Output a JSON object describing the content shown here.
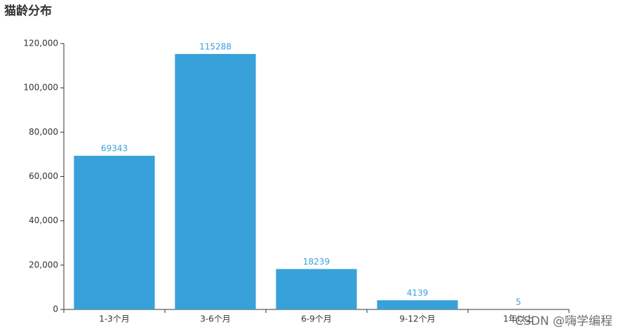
{
  "chart_data": {
    "type": "bar",
    "title": "猫龄分布",
    "categories": [
      "1-3个月",
      "3-6个月",
      "6-9个月",
      "9-12个月",
      "1年以上"
    ],
    "values": [
      69343,
      115288,
      18239,
      4139,
      5
    ],
    "color": "#38a1d9",
    "ylim": [
      0,
      120000
    ],
    "yticks": [
      0,
      {
        "value": 20000,
        "label": "20,000"
      },
      {
        "value": 40000,
        "label": "40,000"
      },
      {
        "value": 60000,
        "label": "60,000"
      },
      {
        "value": 80000,
        "label": "80,000"
      },
      {
        "value": 100000,
        "label": "100,000"
      },
      {
        "value": 120000,
        "label": "120,000"
      }
    ],
    "grid": false,
    "annotation": "CSDN @嗨学编程"
  }
}
